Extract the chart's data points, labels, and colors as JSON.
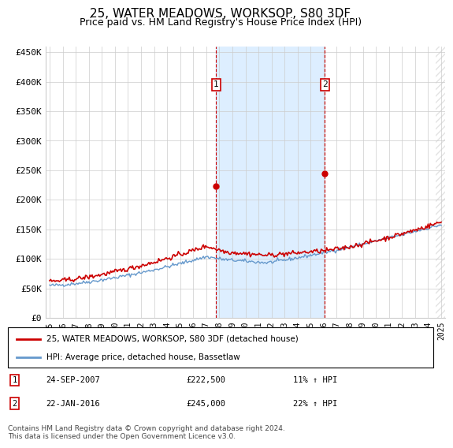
{
  "title": "25, WATER MEADOWS, WORKSOP, S80 3DF",
  "subtitle": "Price paid vs. HM Land Registry's House Price Index (HPI)",
  "ylim": [
    0,
    460000
  ],
  "yticks": [
    0,
    50000,
    100000,
    150000,
    200000,
    250000,
    300000,
    350000,
    400000,
    450000
  ],
  "ytick_labels": [
    "£0",
    "£50K",
    "£100K",
    "£150K",
    "£200K",
    "£250K",
    "£300K",
    "£350K",
    "£400K",
    "£450K"
  ],
  "red_color": "#cc0000",
  "blue_color": "#6699cc",
  "shaded_color": "#ddeeff",
  "hatch_color": "#bbbbbb",
  "grid_color": "#cccccc",
  "background_color": "#ffffff",
  "sale1_label": "1",
  "sale1_value": 222500,
  "sale1_text": "24-SEP-2007",
  "sale1_pct": "11% ↑ HPI",
  "sale1_price_str": "£222,500",
  "sale2_label": "2",
  "sale2_value": 245000,
  "sale2_text": "22-JAN-2016",
  "sale2_pct": "22% ↑ HPI",
  "sale2_price_str": "£245,000",
  "legend_line1": "25, WATER MEADOWS, WORKSOP, S80 3DF (detached house)",
  "legend_line2": "HPI: Average price, detached house, Bassetlaw",
  "footer": "Contains HM Land Registry data © Crown copyright and database right 2024.\nThis data is licensed under the Open Government Licence v3.0.",
  "x_start_year": 1995,
  "x_end_year": 2025
}
